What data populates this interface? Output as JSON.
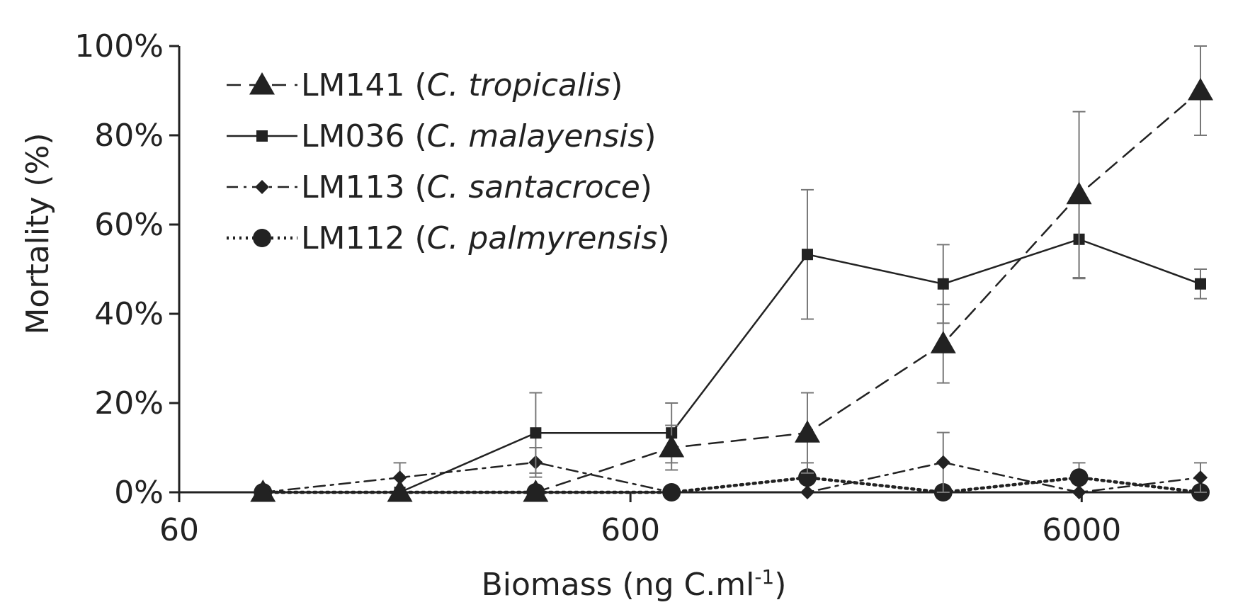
{
  "chart_data": {
    "type": "line",
    "title": "",
    "xlabel_main": "Biomass (ng C.ml",
    "xlabel_sup": "-1",
    "xlabel_end": ")",
    "ylabel": "Mortality (%)",
    "xscale": "log",
    "xlim": [
      60,
      11000
    ],
    "ylim": [
      0,
      100
    ],
    "xticks": [
      60,
      600,
      6000
    ],
    "xtick_labels": [
      "60",
      "600",
      "6000"
    ],
    "yticks": [
      0,
      20,
      40,
      60,
      80,
      100
    ],
    "ytick_labels": [
      "0%",
      "20%",
      "40%",
      "60%",
      "80%",
      "100%"
    ],
    "legend_position": "top-left",
    "series": [
      {
        "id": "lm141",
        "name": "LM141",
        "species": "C. tropicalis",
        "line": "dashed",
        "marker": "triangle",
        "x": [
          92,
          185,
          370,
          740,
          1480,
          2960,
          5920,
          11000
        ],
        "y": [
          0,
          0,
          0,
          10,
          13.3,
          33.3,
          66.7,
          90
        ],
        "err": [
          0,
          0,
          0,
          5,
          9,
          8.8,
          18.6,
          10
        ]
      },
      {
        "id": "lm036",
        "name": "LM036",
        "species": "C. malayensis",
        "line": "solid",
        "marker": "square",
        "x": [
          185,
          370,
          740,
          1480,
          2960,
          5920,
          11000
        ],
        "y": [
          0,
          13.3,
          13.3,
          53.3,
          46.7,
          56.7,
          46.7
        ],
        "err": [
          0,
          9,
          6.7,
          14.5,
          8.8,
          8.8,
          3.3
        ]
      },
      {
        "id": "lm113",
        "name": "LM113",
        "species": "C. santacroce",
        "line": "dashdot",
        "marker": "diamond",
        "x": [
          92,
          185,
          370,
          740,
          1480,
          2960,
          5920,
          11000
        ],
        "y": [
          0,
          3.3,
          6.7,
          0,
          0,
          6.7,
          0,
          3.3
        ],
        "err": [
          0,
          3.3,
          3.3,
          0,
          0,
          6.7,
          0,
          3.3
        ]
      },
      {
        "id": "lm112",
        "name": "LM112",
        "species": "C. palmyrensis",
        "line": "dotted",
        "marker": "circle",
        "x": [
          92,
          370,
          740,
          1480,
          2960,
          5920,
          11000
        ],
        "y": [
          0,
          0,
          0,
          3.3,
          0,
          3.3,
          0
        ],
        "err": [
          0,
          0,
          0,
          3.3,
          0,
          3.3,
          0
        ]
      }
    ]
  },
  "colors": {
    "ink": "#222222",
    "errorbar": "#777777"
  }
}
